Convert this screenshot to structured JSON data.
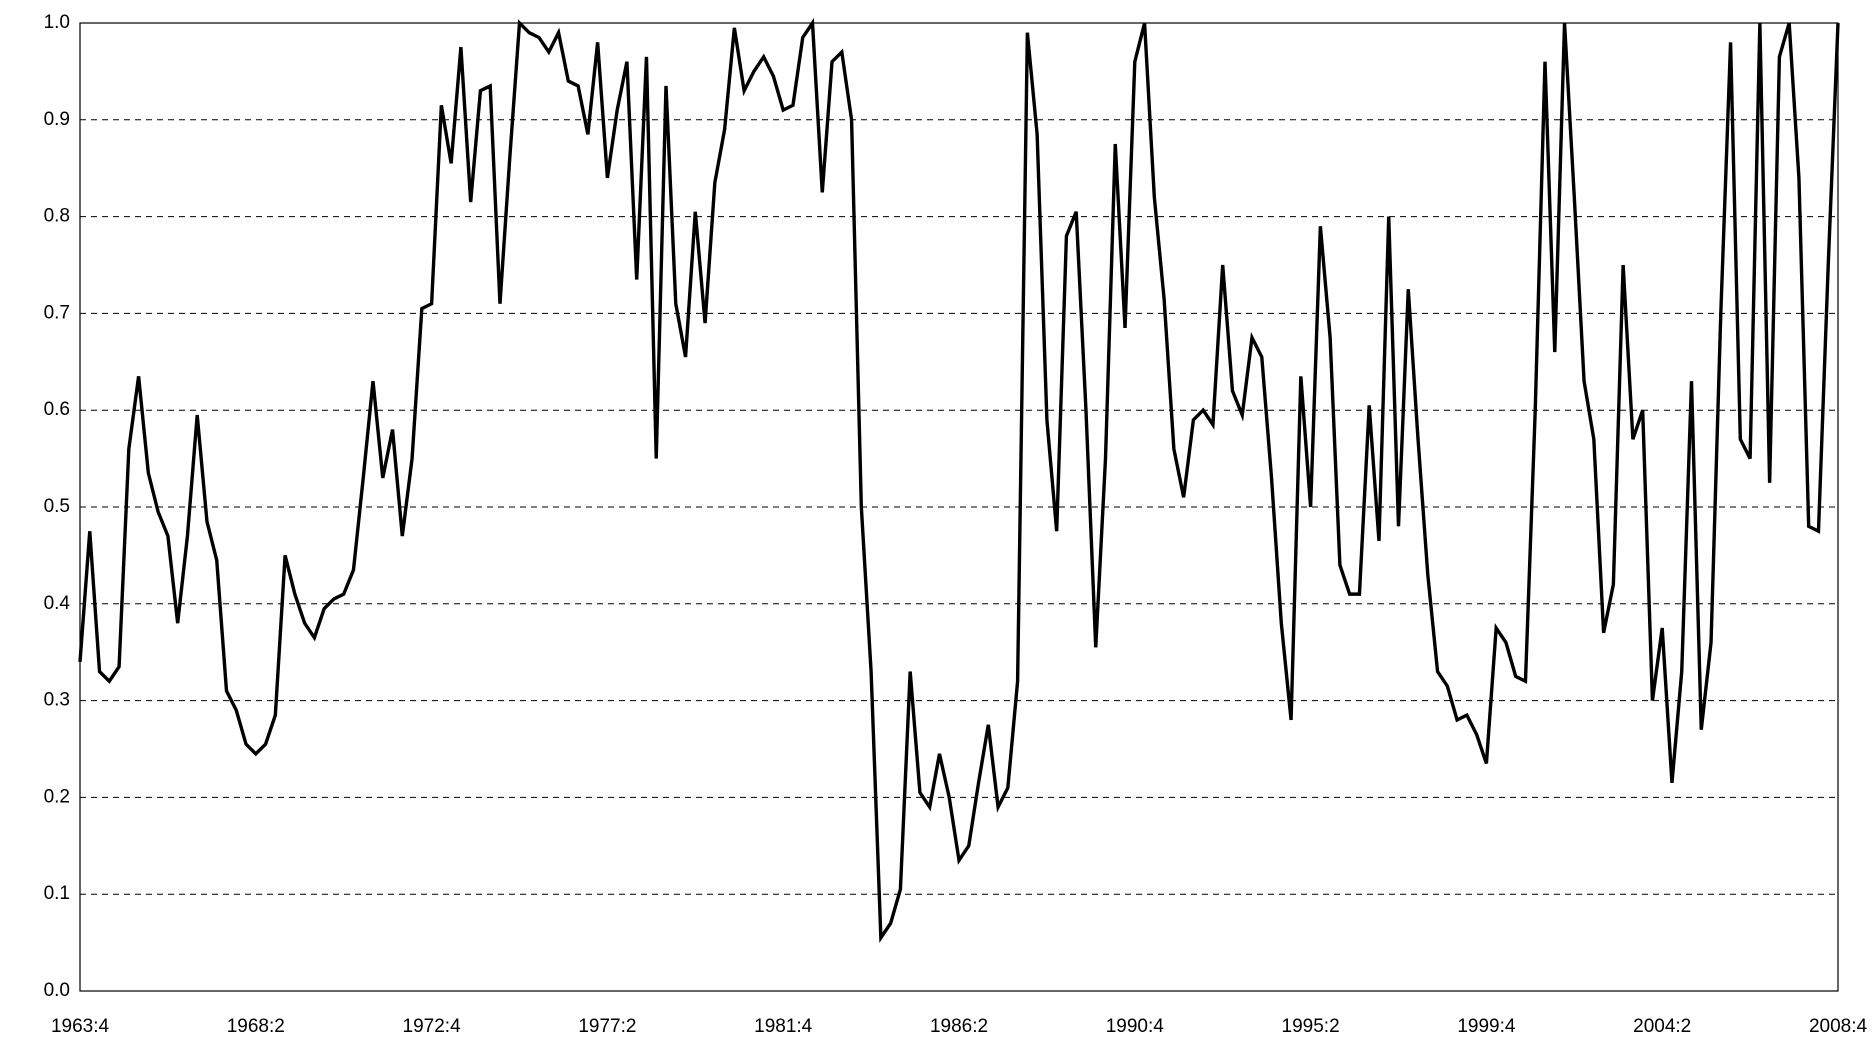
{
  "chart_data": {
    "type": "line",
    "categories": [
      "1963:4",
      null,
      null,
      null,
      null,
      null,
      null,
      null,
      null,
      null,
      null,
      null,
      null,
      null,
      null,
      null,
      null,
      null,
      "1968:2",
      null,
      null,
      null,
      null,
      null,
      null,
      null,
      null,
      null,
      null,
      null,
      null,
      null,
      null,
      null,
      null,
      null,
      "1972:4",
      null,
      null,
      null,
      null,
      null,
      null,
      null,
      null,
      null,
      null,
      null,
      null,
      null,
      null,
      null,
      null,
      null,
      "1977:2",
      null,
      null,
      null,
      null,
      null,
      null,
      null,
      null,
      null,
      null,
      null,
      null,
      null,
      null,
      null,
      null,
      null,
      "1981:4",
      null,
      null,
      null,
      null,
      null,
      null,
      null,
      null,
      null,
      null,
      null,
      null,
      null,
      null,
      null,
      null,
      null,
      "1986:2",
      null,
      null,
      null,
      null,
      null,
      null,
      null,
      null,
      null,
      null,
      null,
      null,
      null,
      null,
      null,
      null,
      null,
      "1990:4",
      null,
      null,
      null,
      null,
      null,
      null,
      null,
      null,
      null,
      null,
      null,
      null,
      null,
      null,
      null,
      null,
      null,
      "1995:2",
      null,
      null,
      null,
      null,
      null,
      null,
      null,
      null,
      null,
      null,
      null,
      null,
      null,
      null,
      null,
      null,
      null,
      "1999:4",
      null,
      null,
      null,
      null,
      null,
      null,
      null,
      null,
      null,
      null,
      null,
      null,
      null,
      null,
      null,
      null,
      null,
      "2004:2",
      null,
      null,
      null,
      null,
      null,
      null,
      null,
      null,
      null,
      null,
      null,
      null,
      null,
      null,
      null,
      null,
      null,
      "2008:4"
    ],
    "values": [
      0.34,
      0.475,
      0.33,
      0.32,
      0.335,
      0.56,
      0.635,
      0.535,
      0.495,
      0.47,
      0.38,
      0.47,
      0.595,
      0.485,
      0.445,
      0.31,
      0.29,
      0.255,
      0.245,
      0.255,
      0.285,
      0.45,
      0.41,
      0.38,
      0.365,
      0.395,
      0.405,
      0.41,
      0.435,
      0.53,
      0.63,
      0.53,
      0.58,
      0.47,
      0.55,
      0.705,
      0.71,
      0.915,
      0.855,
      0.975,
      0.815,
      0.93,
      0.935,
      0.71,
      0.86,
      1.0,
      0.99,
      0.985,
      0.97,
      0.99,
      0.94,
      0.935,
      0.885,
      0.98,
      0.84,
      0.91,
      0.96,
      0.735,
      0.965,
      0.55,
      0.935,
      0.71,
      0.655,
      0.805,
      0.69,
      0.835,
      0.89,
      0.995,
      0.93,
      0.95,
      0.965,
      0.945,
      0.91,
      0.915,
      0.985,
      1.0,
      0.825,
      0.96,
      0.97,
      0.9,
      0.5,
      0.33,
      0.055,
      0.07,
      0.105,
      0.33,
      0.205,
      0.19,
      0.245,
      0.2,
      0.135,
      0.15,
      0.215,
      0.275,
      0.19,
      0.21,
      0.32,
      0.99,
      0.885,
      0.59,
      0.475,
      0.78,
      0.805,
      0.6,
      0.355,
      0.55,
      0.875,
      0.685,
      0.96,
      1.0,
      0.82,
      0.715,
      0.56,
      0.51,
      0.59,
      0.6,
      0.585,
      0.75,
      0.62,
      0.595,
      0.675,
      0.655,
      0.53,
      0.38,
      0.28,
      0.635,
      0.5,
      0.79,
      0.675,
      0.44,
      0.41,
      0.41,
      0.605,
      0.465,
      0.8,
      0.48,
      0.725,
      0.57,
      0.43,
      0.33,
      0.315,
      0.28,
      0.285,
      0.265,
      0.235,
      0.375,
      0.36,
      0.325,
      0.32,
      0.6,
      0.96,
      0.66,
      1.0,
      0.82,
      0.63,
      0.57,
      0.37,
      0.42,
      0.75,
      0.57,
      0.6,
      0.3,
      0.375,
      0.215,
      0.33,
      0.63,
      0.27,
      0.36,
      0.7,
      0.98,
      0.57,
      0.55,
      1.0,
      0.525,
      0.965,
      1.0,
      0.84,
      0.48,
      0.475,
      0.75,
      1.0
    ],
    "color": "#000000",
    "ylim": [
      0,
      1
    ],
    "yticks": [
      {
        "value": 0,
        "label": "0.0"
      },
      0.1,
      0.2,
      0.3,
      0.4,
      0.5,
      0.6,
      0.7,
      0.8,
      0.9,
      {
        "value": 1,
        "label": "1.0"
      }
    ],
    "grid": true
  }
}
